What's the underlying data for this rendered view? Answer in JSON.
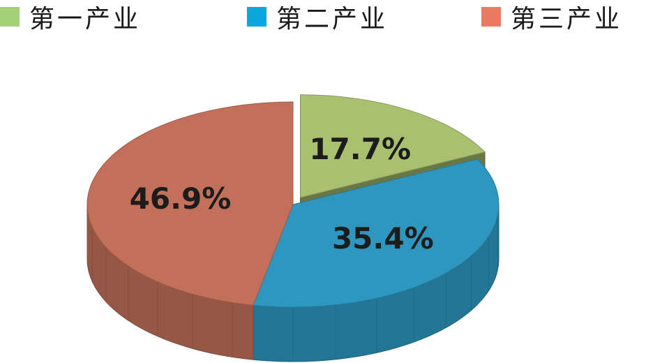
{
  "chart_data": {
    "type": "pie",
    "legend": "top",
    "categories": [
      "第一产业",
      "第二产业",
      "第三产业"
    ],
    "values": [
      17.7,
      35.4,
      46.9
    ],
    "labels": [
      "17.7%",
      "35.4%",
      "46.9%"
    ],
    "colors": [
      "#a8c070",
      "#2e97c0",
      "#c2705a"
    ],
    "legend_colors": [
      "#a4d07a",
      "#0aa7dc",
      "#ea7a62"
    ],
    "exploded": [
      "第一产业"
    ]
  }
}
